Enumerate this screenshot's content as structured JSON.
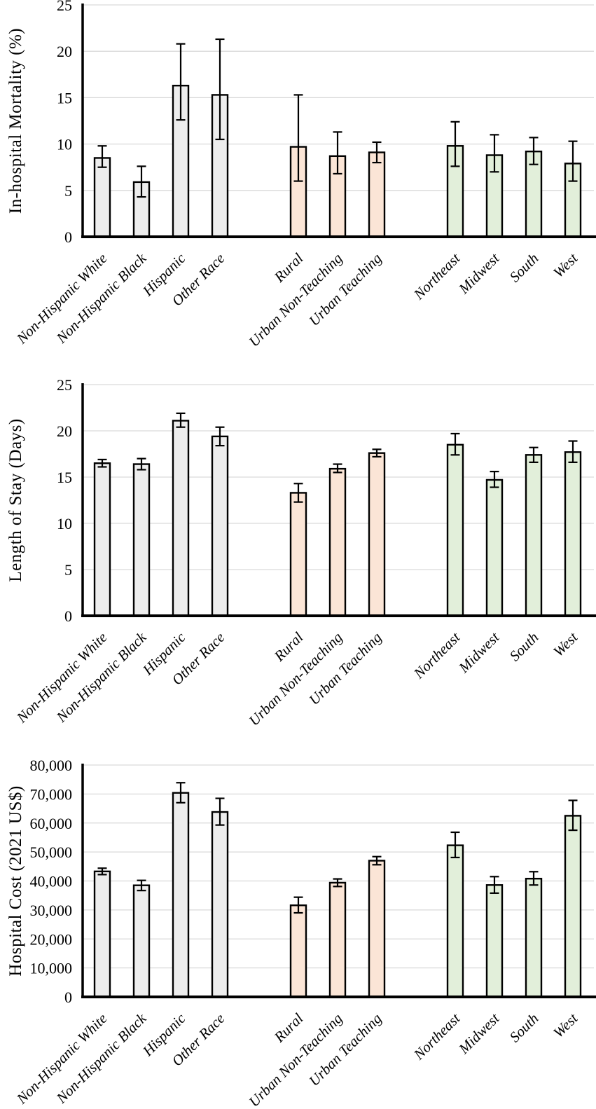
{
  "colors": {
    "background": "#FFFFFF",
    "bar_border": "#000000",
    "error_bar": "#000000",
    "axis": "#000000",
    "gridline": "#D9D9D9",
    "text": "#000000"
  },
  "group_fills": {
    "race": "#EDEDED",
    "hospital_location": "#FBE5D6",
    "census_region": "#E2EFDA"
  },
  "chart_data": [
    {
      "type": "bar",
      "ylabel": "In-hospital Mortality (%)",
      "xlabel": "",
      "ylim": [
        0,
        25
      ],
      "ytick_step": 5,
      "ytick_labels": [
        "0",
        "5",
        "10",
        "15",
        "20",
        "25"
      ],
      "grid": true,
      "legend": "none",
      "error_bars": true,
      "categories": [
        "Non-Hispanic White",
        "Non-Hispanic Black",
        "Hispanic",
        "Other Race",
        "Rural",
        "Urban Non-Teaching",
        "Urban Teaching",
        "Northeast",
        "Midwest",
        "South",
        "West"
      ],
      "category_groups": [
        "race",
        "race",
        "race",
        "race",
        "hospital_location",
        "hospital_location",
        "hospital_location",
        "census_region",
        "census_region",
        "census_region",
        "census_region"
      ],
      "values": [
        8.5,
        5.9,
        16.3,
        15.3,
        9.7,
        8.7,
        9.1,
        9.8,
        8.8,
        9.2,
        7.9
      ],
      "error_low": [
        7.5,
        4.3,
        12.6,
        10.5,
        6.0,
        6.8,
        8.0,
        7.6,
        7.0,
        7.8,
        6.0
      ],
      "error_high": [
        9.8,
        7.6,
        20.8,
        21.3,
        15.3,
        11.3,
        10.2,
        12.4,
        11.0,
        10.7,
        10.3
      ]
    },
    {
      "type": "bar",
      "ylabel": "Length of Stay (Days)",
      "xlabel": "",
      "ylim": [
        0,
        25
      ],
      "ytick_step": 5,
      "ytick_labels": [
        "0",
        "5",
        "10",
        "15",
        "20",
        "25"
      ],
      "grid": true,
      "legend": "none",
      "error_bars": true,
      "categories": [
        "Non-Hispanic White",
        "Non-Hispanic Black",
        "Hispanic",
        "Other Race",
        "Rural",
        "Urban Non-Teaching",
        "Urban Teaching",
        "Northeast",
        "Midwest",
        "South",
        "West"
      ],
      "category_groups": [
        "race",
        "race",
        "race",
        "race",
        "hospital_location",
        "hospital_location",
        "hospital_location",
        "census_region",
        "census_region",
        "census_region",
        "census_region"
      ],
      "values": [
        16.5,
        16.4,
        21.1,
        19.4,
        13.3,
        15.9,
        17.6,
        18.5,
        14.7,
        17.4,
        17.7
      ],
      "error_low": [
        16.1,
        15.8,
        20.4,
        18.4,
        12.3,
        15.5,
        17.2,
        17.4,
        13.9,
        16.6,
        16.6
      ],
      "error_high": [
        16.9,
        17.0,
        21.9,
        20.4,
        14.3,
        16.4,
        18.0,
        19.7,
        15.6,
        18.2,
        18.9
      ]
    },
    {
      "type": "bar",
      "ylabel": "Hospital Cost (2021 US$)",
      "xlabel": "",
      "ylim": [
        0,
        80000
      ],
      "ytick_step": 10000,
      "ytick_labels": [
        "0",
        "10,000",
        "20,000",
        "30,000",
        "40,000",
        "50,000",
        "60,000",
        "70,000",
        "80,000"
      ],
      "grid": true,
      "legend": "none",
      "error_bars": true,
      "categories": [
        "Non-Hispanic White",
        "Non-Hispanic Black",
        "Hispanic",
        "Other Race",
        "Rural",
        "Urban Non-Teaching",
        "Urban Teaching",
        "Northeast",
        "Midwest",
        "South",
        "West"
      ],
      "category_groups": [
        "race",
        "race",
        "race",
        "race",
        "hospital_location",
        "hospital_location",
        "hospital_location",
        "census_region",
        "census_region",
        "census_region",
        "census_region"
      ],
      "values": [
        43300,
        38500,
        70400,
        63800,
        31600,
        39400,
        47000,
        52300,
        38600,
        40800,
        62500
      ],
      "error_low": [
        42200,
        36700,
        67000,
        59300,
        29000,
        38100,
        45600,
        48100,
        35800,
        38600,
        57500
      ],
      "error_high": [
        44400,
        40200,
        73900,
        68500,
        34400,
        40700,
        48400,
        56800,
        41500,
        43200,
        67800
      ]
    }
  ]
}
